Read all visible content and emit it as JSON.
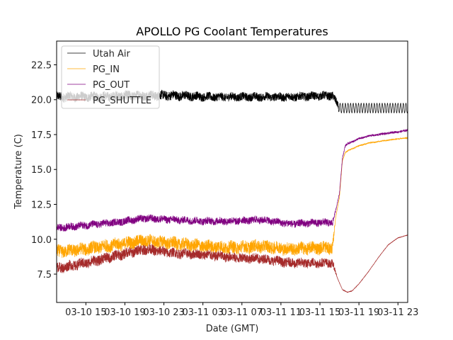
{
  "chart_data": {
    "type": "line",
    "title": "APOLLO PG Coolant Temperatures",
    "xlabel": "Date (GMT)",
    "ylabel": "Temperature (C)",
    "x_units": "hours since 03-10 00:00 GMT",
    "xlim": [
      12.0,
      48.0
    ],
    "ylim": [
      5.47,
      24.2
    ],
    "xticks": [
      15,
      19,
      23,
      27,
      31,
      35,
      39,
      43,
      47
    ],
    "xtick_labels": [
      "03-10 15",
      "03-10 19",
      "03-10 23",
      "03-11 03",
      "03-11 07",
      "03-11 11",
      "03-11 15",
      "03-11 19",
      "03-11 23"
    ],
    "yticks": [
      7.5,
      10.0,
      12.5,
      15.0,
      17.5,
      20.0,
      22.5
    ],
    "ytick_labels": [
      "7.5",
      "10.0",
      "12.5",
      "15.0",
      "17.5",
      "20.0",
      "22.5"
    ],
    "grid": false,
    "legend_position": "top-left",
    "series": [
      {
        "name": "Utah Air",
        "color": "#000000",
        "x": [
          12,
          16,
          20,
          24,
          28,
          32,
          36,
          40.3,
          41.0,
          42,
          44,
          46,
          48
        ],
        "y": [
          20.2,
          20.2,
          20.3,
          20.3,
          20.2,
          20.2,
          20.2,
          20.3,
          19.4,
          19.4,
          19.4,
          19.4,
          19.4
        ],
        "noise_amplitude": [
          0.45,
          0.45,
          0.45,
          0.45,
          0.4,
          0.4,
          0.4,
          0.4,
          0.35,
          0.35,
          0.35,
          0.35,
          0.35
        ]
      },
      {
        "name": "PG_IN",
        "color": "#ffa500",
        "x": [
          12,
          15,
          18,
          21,
          24,
          27,
          30,
          33,
          36,
          39,
          40.3,
          40.6,
          41.0,
          41.3,
          41.6,
          42,
          43,
          44,
          45,
          46,
          47,
          48
        ],
        "y": [
          9.1,
          9.3,
          9.6,
          9.9,
          9.7,
          9.5,
          9.4,
          9.5,
          9.3,
          9.4,
          9.4,
          11.5,
          13.0,
          15.6,
          16.2,
          16.4,
          16.7,
          16.9,
          17.0,
          17.1,
          17.2,
          17.25
        ],
        "noise_amplitude": [
          0.6,
          0.6,
          0.6,
          0.6,
          0.6,
          0.6,
          0.6,
          0.6,
          0.6,
          0.6,
          0.6,
          0.05,
          0.05,
          0.05,
          0.05,
          0.05,
          0.05,
          0.05,
          0.05,
          0.05,
          0.05,
          0.05
        ]
      },
      {
        "name": "PG_OUT",
        "color": "#800080",
        "x": [
          12,
          15,
          18,
          21,
          24,
          27,
          30,
          33,
          36,
          39,
          40.3,
          40.6,
          41.0,
          41.3,
          41.6,
          42,
          43,
          44,
          45,
          46,
          47,
          48
        ],
        "y": [
          10.8,
          11.0,
          11.2,
          11.5,
          11.4,
          11.3,
          11.3,
          11.4,
          11.1,
          11.2,
          11.2,
          12.0,
          13.3,
          15.8,
          16.7,
          16.9,
          17.2,
          17.4,
          17.5,
          17.6,
          17.7,
          17.8
        ],
        "noise_amplitude": [
          0.35,
          0.35,
          0.35,
          0.35,
          0.35,
          0.35,
          0.35,
          0.35,
          0.35,
          0.35,
          0.35,
          0.1,
          0.1,
          0.1,
          0.1,
          0.1,
          0.1,
          0.1,
          0.1,
          0.1,
          0.1,
          0.1
        ]
      },
      {
        "name": "PG_SHUTTLE",
        "color": "#a52a2a",
        "x": [
          12,
          15,
          18,
          21,
          24,
          27,
          30,
          33,
          36,
          39,
          40.3,
          40.8,
          41.3,
          41.8,
          42.3,
          43,
          44,
          45,
          46,
          47,
          48
        ],
        "y": [
          7.9,
          8.3,
          8.8,
          9.3,
          9.0,
          8.9,
          8.7,
          8.6,
          8.3,
          8.3,
          8.3,
          7.2,
          6.4,
          6.2,
          6.3,
          6.8,
          7.7,
          8.7,
          9.6,
          10.1,
          10.3
        ],
        "noise_amplitude": [
          0.5,
          0.5,
          0.5,
          0.5,
          0.45,
          0.45,
          0.45,
          0.45,
          0.45,
          0.45,
          0.4,
          0.02,
          0.02,
          0.02,
          0.02,
          0.02,
          0.02,
          0.02,
          0.02,
          0.02,
          0.02
        ]
      }
    ]
  }
}
